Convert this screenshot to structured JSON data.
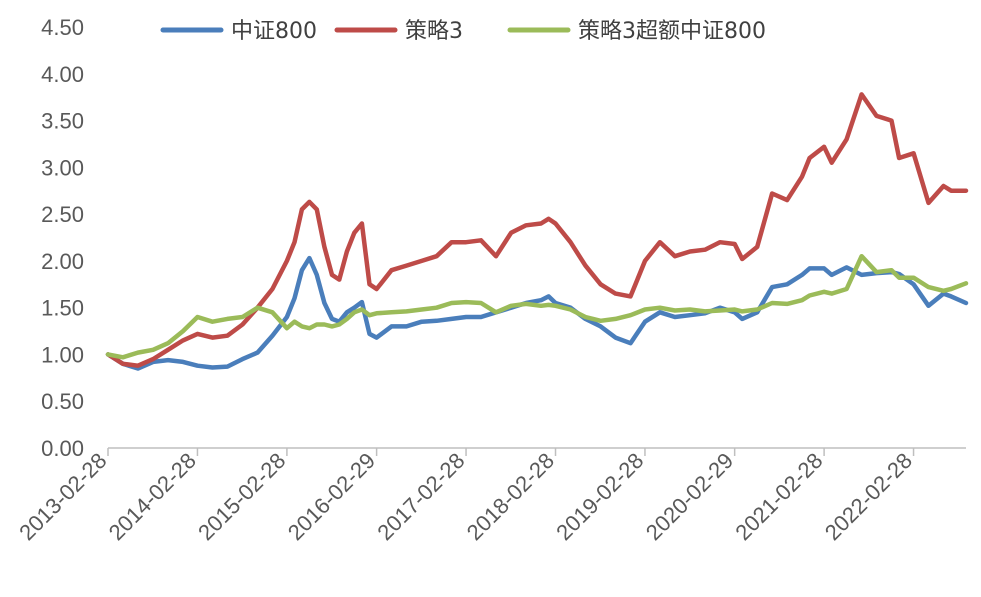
{
  "chart_data": {
    "type": "line",
    "title": "",
    "xlabel": "",
    "ylabel": "",
    "ylim": [
      0,
      4.5
    ],
    "yticks": [
      "0.00",
      "0.50",
      "1.00",
      "1.50",
      "2.00",
      "2.50",
      "3.00",
      "3.50",
      "4.00",
      "4.50"
    ],
    "xticks": [
      "2013-02-28",
      "2014-02-28",
      "2015-02-28",
      "2016-02-29",
      "2017-02-28",
      "2018-02-28",
      "2019-02-28",
      "2020-02-29",
      "2021-02-28",
      "2022-02-28"
    ],
    "x_start": "2013-02-28",
    "x_end": "2022-09-30",
    "legend_position": "top",
    "grid": false,
    "series": [
      {
        "name": "中证800",
        "color": "#4a7ebb",
        "points": [
          [
            "2013-02-28",
            1.0
          ],
          [
            "2013-04-30",
            0.9
          ],
          [
            "2013-06-30",
            0.85
          ],
          [
            "2013-08-31",
            0.92
          ],
          [
            "2013-10-31",
            0.94
          ],
          [
            "2013-12-31",
            0.92
          ],
          [
            "2014-02-28",
            0.88
          ],
          [
            "2014-04-30",
            0.86
          ],
          [
            "2014-06-30",
            0.87
          ],
          [
            "2014-08-31",
            0.95
          ],
          [
            "2014-10-31",
            1.02
          ],
          [
            "2014-12-31",
            1.2
          ],
          [
            "2015-02-28",
            1.4
          ],
          [
            "2015-03-31",
            1.6
          ],
          [
            "2015-04-30",
            1.9
          ],
          [
            "2015-05-31",
            2.03
          ],
          [
            "2015-06-30",
            1.85
          ],
          [
            "2015-07-31",
            1.55
          ],
          [
            "2015-08-31",
            1.38
          ],
          [
            "2015-09-30",
            1.35
          ],
          [
            "2015-10-31",
            1.45
          ],
          [
            "2015-11-30",
            1.5
          ],
          [
            "2015-12-31",
            1.56
          ],
          [
            "2016-01-31",
            1.22
          ],
          [
            "2016-02-29",
            1.18
          ],
          [
            "2016-04-30",
            1.3
          ],
          [
            "2016-06-30",
            1.3
          ],
          [
            "2016-08-31",
            1.35
          ],
          [
            "2016-10-31",
            1.36
          ],
          [
            "2016-12-31",
            1.38
          ],
          [
            "2017-02-28",
            1.4
          ],
          [
            "2017-04-30",
            1.4
          ],
          [
            "2017-06-30",
            1.45
          ],
          [
            "2017-08-31",
            1.5
          ],
          [
            "2017-10-31",
            1.55
          ],
          [
            "2017-12-31",
            1.58
          ],
          [
            "2018-01-31",
            1.62
          ],
          [
            "2018-02-28",
            1.55
          ],
          [
            "2018-04-30",
            1.5
          ],
          [
            "2018-06-30",
            1.38
          ],
          [
            "2018-08-31",
            1.3
          ],
          [
            "2018-10-31",
            1.18
          ],
          [
            "2018-12-31",
            1.12
          ],
          [
            "2019-02-28",
            1.35
          ],
          [
            "2019-04-30",
            1.45
          ],
          [
            "2019-06-30",
            1.4
          ],
          [
            "2019-08-31",
            1.42
          ],
          [
            "2019-10-31",
            1.44
          ],
          [
            "2019-12-31",
            1.5
          ],
          [
            "2020-02-29",
            1.45
          ],
          [
            "2020-03-31",
            1.38
          ],
          [
            "2020-05-31",
            1.45
          ],
          [
            "2020-07-31",
            1.72
          ],
          [
            "2020-09-30",
            1.75
          ],
          [
            "2020-11-30",
            1.85
          ],
          [
            "2020-12-31",
            1.92
          ],
          [
            "2021-02-28",
            1.92
          ],
          [
            "2021-03-31",
            1.85
          ],
          [
            "2021-05-31",
            1.93
          ],
          [
            "2021-07-31",
            1.85
          ],
          [
            "2021-09-30",
            1.87
          ],
          [
            "2021-11-30",
            1.88
          ],
          [
            "2021-12-31",
            1.86
          ],
          [
            "2022-02-28",
            1.75
          ],
          [
            "2022-04-30",
            1.52
          ],
          [
            "2022-06-30",
            1.65
          ],
          [
            "2022-07-31",
            1.62
          ],
          [
            "2022-09-30",
            1.55
          ]
        ]
      },
      {
        "name": "策略3",
        "color": "#be4b48",
        "points": [
          [
            "2013-02-28",
            1.0
          ],
          [
            "2013-04-30",
            0.9
          ],
          [
            "2013-06-30",
            0.88
          ],
          [
            "2013-08-31",
            0.95
          ],
          [
            "2013-10-31",
            1.05
          ],
          [
            "2013-12-31",
            1.15
          ],
          [
            "2014-02-28",
            1.22
          ],
          [
            "2014-04-30",
            1.18
          ],
          [
            "2014-06-30",
            1.2
          ],
          [
            "2014-08-31",
            1.32
          ],
          [
            "2014-10-31",
            1.5
          ],
          [
            "2014-12-31",
            1.7
          ],
          [
            "2015-02-28",
            2.0
          ],
          [
            "2015-03-31",
            2.2
          ],
          [
            "2015-04-30",
            2.55
          ],
          [
            "2015-05-31",
            2.63
          ],
          [
            "2015-06-30",
            2.55
          ],
          [
            "2015-07-31",
            2.15
          ],
          [
            "2015-08-31",
            1.85
          ],
          [
            "2015-09-30",
            1.8
          ],
          [
            "2015-10-31",
            2.1
          ],
          [
            "2015-11-30",
            2.3
          ],
          [
            "2015-12-31",
            2.4
          ],
          [
            "2016-01-31",
            1.75
          ],
          [
            "2016-02-29",
            1.7
          ],
          [
            "2016-04-30",
            1.9
          ],
          [
            "2016-06-30",
            1.95
          ],
          [
            "2016-08-31",
            2.0
          ],
          [
            "2016-10-31",
            2.05
          ],
          [
            "2016-12-31",
            2.2
          ],
          [
            "2017-02-28",
            2.2
          ],
          [
            "2017-04-30",
            2.22
          ],
          [
            "2017-06-30",
            2.05
          ],
          [
            "2017-08-31",
            2.3
          ],
          [
            "2017-10-31",
            2.38
          ],
          [
            "2017-12-31",
            2.4
          ],
          [
            "2018-01-31",
            2.45
          ],
          [
            "2018-02-28",
            2.4
          ],
          [
            "2018-04-30",
            2.2
          ],
          [
            "2018-06-30",
            1.95
          ],
          [
            "2018-08-31",
            1.75
          ],
          [
            "2018-10-31",
            1.65
          ],
          [
            "2018-12-31",
            1.62
          ],
          [
            "2019-02-28",
            2.0
          ],
          [
            "2019-04-30",
            2.2
          ],
          [
            "2019-06-30",
            2.05
          ],
          [
            "2019-08-31",
            2.1
          ],
          [
            "2019-10-31",
            2.12
          ],
          [
            "2019-12-31",
            2.2
          ],
          [
            "2020-02-29",
            2.18
          ],
          [
            "2020-03-31",
            2.02
          ],
          [
            "2020-05-31",
            2.15
          ],
          [
            "2020-07-31",
            2.72
          ],
          [
            "2020-09-30",
            2.65
          ],
          [
            "2020-11-30",
            2.9
          ],
          [
            "2020-12-31",
            3.1
          ],
          [
            "2021-02-28",
            3.22
          ],
          [
            "2021-03-31",
            3.05
          ],
          [
            "2021-05-31",
            3.3
          ],
          [
            "2021-07-31",
            3.78
          ],
          [
            "2021-09-30",
            3.55
          ],
          [
            "2021-11-30",
            3.5
          ],
          [
            "2021-12-31",
            3.1
          ],
          [
            "2022-02-28",
            3.15
          ],
          [
            "2022-04-30",
            2.62
          ],
          [
            "2022-06-30",
            2.8
          ],
          [
            "2022-07-31",
            2.75
          ],
          [
            "2022-09-30",
            2.75
          ]
        ]
      },
      {
        "name": "策略3超额中证800",
        "color": "#9bbb59",
        "points": [
          [
            "2013-02-28",
            1.0
          ],
          [
            "2013-04-30",
            0.97
          ],
          [
            "2013-06-30",
            1.02
          ],
          [
            "2013-08-31",
            1.05
          ],
          [
            "2013-10-31",
            1.12
          ],
          [
            "2013-12-31",
            1.25
          ],
          [
            "2014-02-28",
            1.4
          ],
          [
            "2014-04-30",
            1.35
          ],
          [
            "2014-06-30",
            1.38
          ],
          [
            "2014-08-31",
            1.4
          ],
          [
            "2014-10-31",
            1.5
          ],
          [
            "2014-12-31",
            1.45
          ],
          [
            "2015-02-28",
            1.28
          ],
          [
            "2015-03-31",
            1.35
          ],
          [
            "2015-04-30",
            1.3
          ],
          [
            "2015-05-31",
            1.28
          ],
          [
            "2015-06-30",
            1.32
          ],
          [
            "2015-07-31",
            1.32
          ],
          [
            "2015-08-31",
            1.3
          ],
          [
            "2015-09-30",
            1.32
          ],
          [
            "2015-10-31",
            1.38
          ],
          [
            "2015-11-30",
            1.45
          ],
          [
            "2015-12-31",
            1.48
          ],
          [
            "2016-01-31",
            1.42
          ],
          [
            "2016-02-29",
            1.44
          ],
          [
            "2016-04-30",
            1.45
          ],
          [
            "2016-06-30",
            1.46
          ],
          [
            "2016-08-31",
            1.48
          ],
          [
            "2016-10-31",
            1.5
          ],
          [
            "2016-12-31",
            1.55
          ],
          [
            "2017-02-28",
            1.56
          ],
          [
            "2017-04-30",
            1.55
          ],
          [
            "2017-06-30",
            1.45
          ],
          [
            "2017-08-31",
            1.52
          ],
          [
            "2017-10-31",
            1.54
          ],
          [
            "2017-12-31",
            1.52
          ],
          [
            "2018-01-31",
            1.53
          ],
          [
            "2018-02-28",
            1.52
          ],
          [
            "2018-04-30",
            1.48
          ],
          [
            "2018-06-30",
            1.4
          ],
          [
            "2018-08-31",
            1.36
          ],
          [
            "2018-10-31",
            1.38
          ],
          [
            "2018-12-31",
            1.42
          ],
          [
            "2019-02-28",
            1.48
          ],
          [
            "2019-04-30",
            1.5
          ],
          [
            "2019-06-30",
            1.47
          ],
          [
            "2019-08-31",
            1.48
          ],
          [
            "2019-10-31",
            1.46
          ],
          [
            "2019-12-31",
            1.47
          ],
          [
            "2020-02-29",
            1.48
          ],
          [
            "2020-03-31",
            1.46
          ],
          [
            "2020-05-31",
            1.48
          ],
          [
            "2020-07-31",
            1.55
          ],
          [
            "2020-09-30",
            1.54
          ],
          [
            "2020-11-30",
            1.58
          ],
          [
            "2020-12-31",
            1.63
          ],
          [
            "2021-02-28",
            1.67
          ],
          [
            "2021-03-31",
            1.65
          ],
          [
            "2021-05-31",
            1.7
          ],
          [
            "2021-07-31",
            2.05
          ],
          [
            "2021-09-30",
            1.88
          ],
          [
            "2021-11-30",
            1.9
          ],
          [
            "2021-12-31",
            1.82
          ],
          [
            "2022-02-28",
            1.82
          ],
          [
            "2022-04-30",
            1.72
          ],
          [
            "2022-06-30",
            1.68
          ],
          [
            "2022-07-31",
            1.7
          ],
          [
            "2022-09-30",
            1.76
          ]
        ]
      }
    ]
  }
}
